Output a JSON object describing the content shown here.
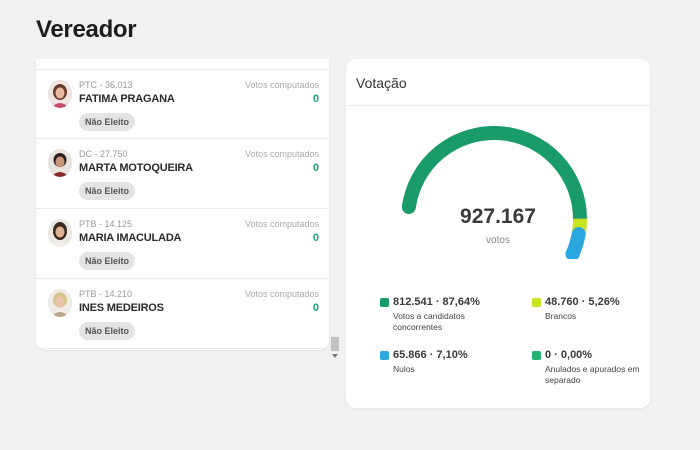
{
  "page_title": "Vereador",
  "candidates": [
    {
      "party": "PTC - 36.013",
      "name": "FATIMA PRAGANA",
      "votes_label": "Votos computados",
      "votes": "0",
      "status": "Não Eleito"
    },
    {
      "party": "DC - 27.750",
      "name": "MARTA MOTOQUEIRA",
      "votes_label": "Votos computados",
      "votes": "0",
      "status": "Não Eleito"
    },
    {
      "party": "PTB - 14.125",
      "name": "MARIA IMACULADA",
      "votes_label": "Votos computados",
      "votes": "0",
      "status": "Não Eleito"
    },
    {
      "party": "PTB - 14.210",
      "name": "INES MEDEIROS",
      "votes_label": "Votos computados",
      "votes": "0",
      "status": "Não Eleito"
    }
  ],
  "votacao": {
    "title": "Votação",
    "total": "927.167",
    "unit": "votos",
    "gauge_fractions": {
      "candidates": 0.8764,
      "blank": 0.0526,
      "null": 0.071,
      "annulled": 0.0
    },
    "colors": {
      "candidates": "#1a9b6a",
      "blank": "#c8e31f",
      "null": "#2aa7df",
      "annulled": "#22b473"
    },
    "legend": [
      {
        "key": "candidates",
        "value": "812.541 · 87,64%",
        "label": "Votos a candidatos concorrentes"
      },
      {
        "key": "blank",
        "value": "48.760 · 5,26%",
        "label": "Brancos"
      },
      {
        "key": "null",
        "value": "65.866 · 7,10%",
        "label": "Nulos"
      },
      {
        "key": "annulled",
        "value": "0 · 0,00%",
        "label": "Anulados e apurados em separado"
      }
    ]
  }
}
